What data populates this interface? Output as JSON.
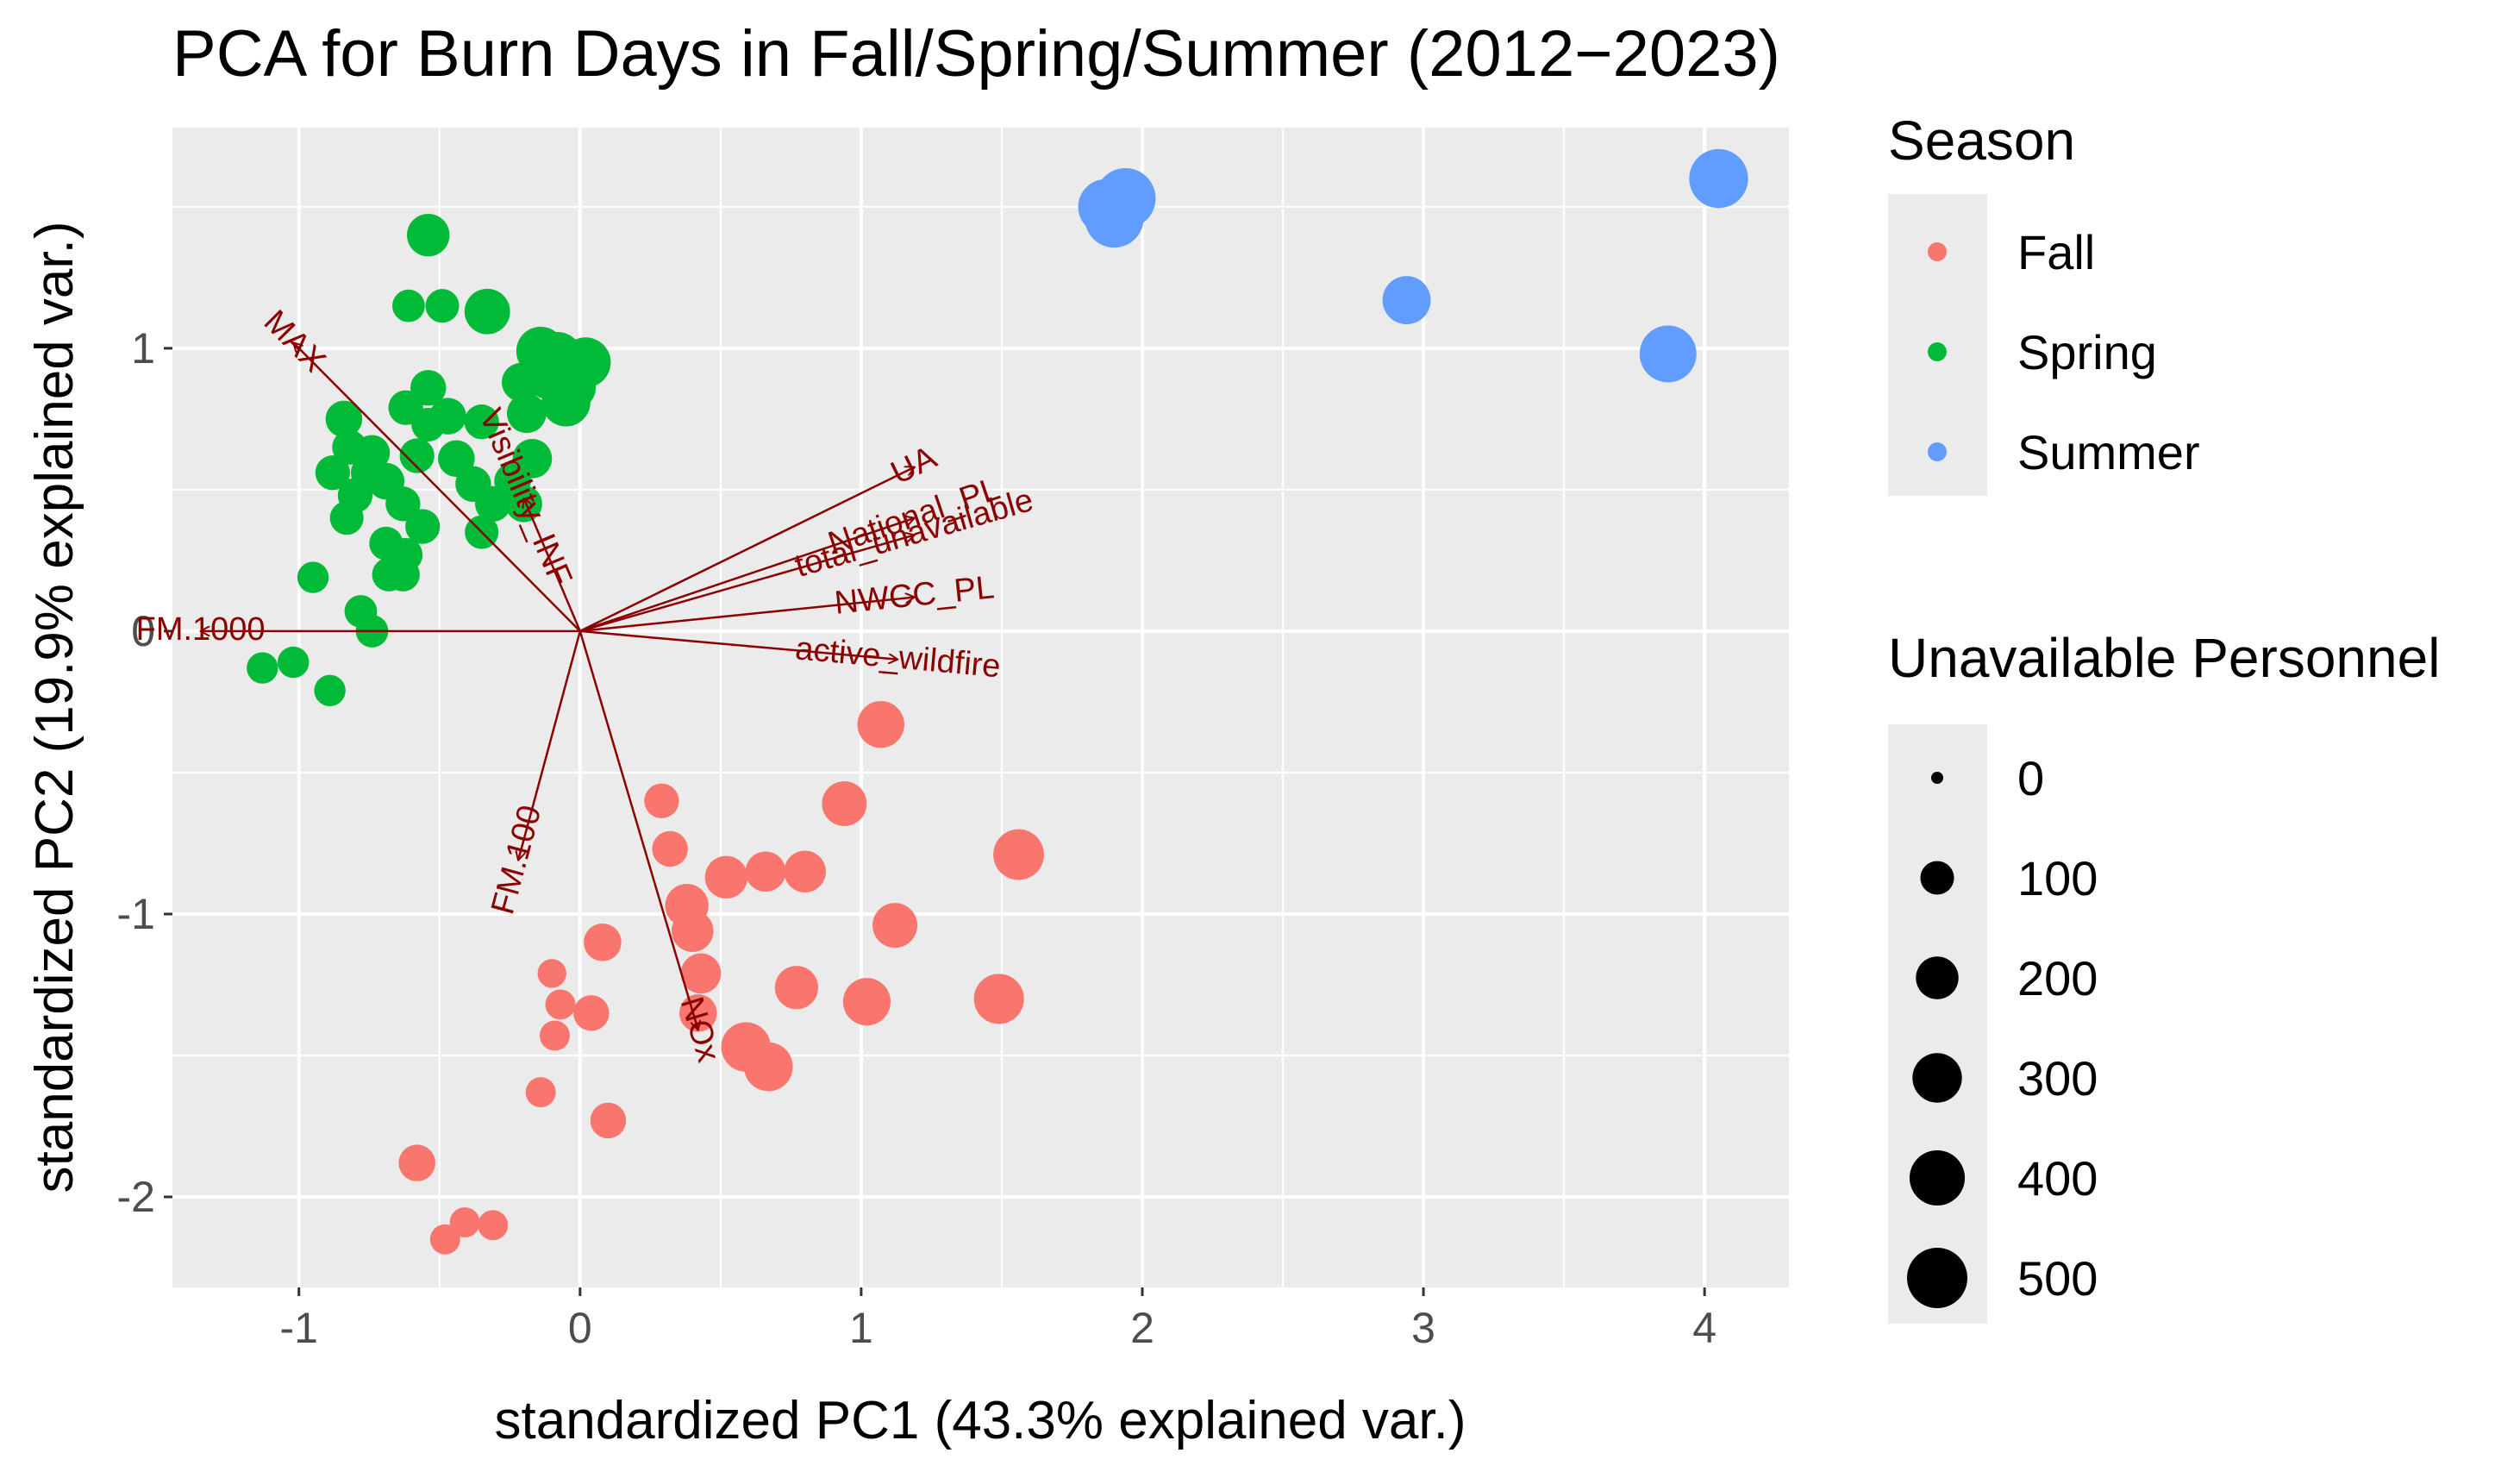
{
  "chart_data": {
    "type": "scatter",
    "title": "PCA for Burn Days in Fall/Spring/Summer (2012−2023)",
    "xlabel": "standardized PC1 (43.3% explained var.)",
    "ylabel": "standardized PC2 (19.9% explained var.)",
    "xlim": [
      -1.45,
      4.3
    ],
    "ylim": [
      -2.32,
      1.78
    ],
    "x_ticks": [
      -1,
      0,
      1,
      2,
      3,
      4
    ],
    "x_tick_labels": [
      "-1",
      "0",
      "1",
      "2",
      "3",
      "4"
    ],
    "y_ticks": [
      -2,
      -1,
      0,
      1
    ],
    "y_tick_labels": [
      "-2",
      "-1",
      "0",
      "1"
    ],
    "grid": true,
    "background": "#ebebeb",
    "legend_position": "right",
    "legend_color": {
      "title": "Season",
      "entries": [
        {
          "label": "Fall",
          "color": "#f8766d"
        },
        {
          "label": "Spring",
          "color": "#00ba38"
        },
        {
          "label": "Summer",
          "color": "#619cff"
        }
      ]
    },
    "legend_size": {
      "title": "Unavailable Personnel",
      "entries": [
        {
          "label": "0",
          "value": 0
        },
        {
          "label": "100",
          "value": 100
        },
        {
          "label": "200",
          "value": 200
        },
        {
          "label": "300",
          "value": 300
        },
        {
          "label": "400",
          "value": 400
        },
        {
          "label": "500",
          "value": 500
        }
      ]
    },
    "series": [
      {
        "name": "Fall",
        "color": "#f8766d",
        "points": [
          {
            "x": 1.07,
            "y": -0.33,
            "size": 260
          },
          {
            "x": 0.94,
            "y": -0.61,
            "size": 230
          },
          {
            "x": 1.56,
            "y": -0.79,
            "size": 320
          },
          {
            "x": 0.29,
            "y": -0.6,
            "size": 110
          },
          {
            "x": 0.32,
            "y": -0.77,
            "size": 120
          },
          {
            "x": 0.52,
            "y": -0.87,
            "size": 200
          },
          {
            "x": 0.66,
            "y": -0.85,
            "size": 170
          },
          {
            "x": 0.8,
            "y": -0.85,
            "size": 190
          },
          {
            "x": 0.38,
            "y": -0.97,
            "size": 210
          },
          {
            "x": 0.4,
            "y": -1.06,
            "size": 190
          },
          {
            "x": 1.12,
            "y": -1.04,
            "size": 230
          },
          {
            "x": 0.08,
            "y": -1.1,
            "size": 140
          },
          {
            "x": -0.1,
            "y": -1.21,
            "size": 60
          },
          {
            "x": 0.43,
            "y": -1.21,
            "size": 170
          },
          {
            "x": 0.77,
            "y": -1.26,
            "size": 210
          },
          {
            "x": 1.02,
            "y": -1.31,
            "size": 270
          },
          {
            "x": 1.49,
            "y": -1.3,
            "size": 310
          },
          {
            "x": -0.07,
            "y": -1.32,
            "size": 70
          },
          {
            "x": 0.04,
            "y": -1.35,
            "size": 120
          },
          {
            "x": 0.42,
            "y": -1.35,
            "size": 140
          },
          {
            "x": -0.09,
            "y": -1.43,
            "size": 70
          },
          {
            "x": 0.59,
            "y": -1.47,
            "size": 300
          },
          {
            "x": 0.67,
            "y": -1.54,
            "size": 290
          },
          {
            "x": -0.14,
            "y": -1.63,
            "size": 70
          },
          {
            "x": 0.1,
            "y": -1.73,
            "size": 120
          },
          {
            "x": -0.58,
            "y": -1.88,
            "size": 130
          },
          {
            "x": -0.41,
            "y": -2.09,
            "size": 70
          },
          {
            "x": -0.31,
            "y": -2.1,
            "size": 70
          },
          {
            "x": -0.48,
            "y": -2.15,
            "size": 70
          }
        ]
      },
      {
        "name": "Spring",
        "color": "#00ba38",
        "points": [
          {
            "x": -0.54,
            "y": 1.4,
            "size": 200
          },
          {
            "x": -0.61,
            "y": 1.15,
            "size": 90
          },
          {
            "x": -0.49,
            "y": 1.15,
            "size": 100
          },
          {
            "x": -0.33,
            "y": 1.13,
            "size": 240
          },
          {
            "x": -0.14,
            "y": 0.99,
            "size": 290
          },
          {
            "x": -0.08,
            "y": 0.97,
            "size": 300
          },
          {
            "x": 0.02,
            "y": 0.95,
            "size": 310
          },
          {
            "x": -0.21,
            "y": 0.88,
            "size": 150
          },
          {
            "x": -0.12,
            "y": 0.89,
            "size": 150
          },
          {
            "x": -0.02,
            "y": 0.86,
            "size": 200
          },
          {
            "x": -0.05,
            "y": 0.81,
            "size": 290
          },
          {
            "x": -0.54,
            "y": 0.86,
            "size": 120
          },
          {
            "x": -0.62,
            "y": 0.79,
            "size": 110
          },
          {
            "x": -0.47,
            "y": 0.76,
            "size": 130
          },
          {
            "x": -0.19,
            "y": 0.77,
            "size": 160
          },
          {
            "x": -0.54,
            "y": 0.73,
            "size": 100
          },
          {
            "x": -0.35,
            "y": 0.74,
            "size": 110
          },
          {
            "x": -0.84,
            "y": 0.75,
            "size": 130
          },
          {
            "x": -0.82,
            "y": 0.65,
            "size": 110
          },
          {
            "x": -0.74,
            "y": 0.63,
            "size": 120
          },
          {
            "x": -0.58,
            "y": 0.62,
            "size": 110
          },
          {
            "x": -0.44,
            "y": 0.61,
            "size": 130
          },
          {
            "x": -0.17,
            "y": 0.61,
            "size": 160
          },
          {
            "x": -0.88,
            "y": 0.56,
            "size": 110
          },
          {
            "x": -0.75,
            "y": 0.56,
            "size": 130
          },
          {
            "x": -0.69,
            "y": 0.53,
            "size": 130
          },
          {
            "x": -0.38,
            "y": 0.52,
            "size": 120
          },
          {
            "x": -0.24,
            "y": 0.53,
            "size": 130
          },
          {
            "x": -0.8,
            "y": 0.48,
            "size": 110
          },
          {
            "x": -0.63,
            "y": 0.45,
            "size": 110
          },
          {
            "x": -0.31,
            "y": 0.45,
            "size": 120
          },
          {
            "x": -0.2,
            "y": 0.45,
            "size": 130
          },
          {
            "x": -0.83,
            "y": 0.4,
            "size": 100
          },
          {
            "x": -0.56,
            "y": 0.37,
            "size": 110
          },
          {
            "x": -0.35,
            "y": 0.35,
            "size": 100
          },
          {
            "x": -0.69,
            "y": 0.31,
            "size": 100
          },
          {
            "x": -0.62,
            "y": 0.27,
            "size": 100
          },
          {
            "x": -0.68,
            "y": 0.2,
            "size": 100
          },
          {
            "x": -0.63,
            "y": 0.2,
            "size": 100
          },
          {
            "x": -0.95,
            "y": 0.19,
            "size": 80
          },
          {
            "x": -0.78,
            "y": 0.07,
            "size": 90
          },
          {
            "x": -0.74,
            "y": 0.0,
            "size": 90
          },
          {
            "x": -1.13,
            "y": -0.13,
            "size": 80
          },
          {
            "x": -1.02,
            "y": -0.11,
            "size": 80
          },
          {
            "x": -0.89,
            "y": -0.21,
            "size": 80
          }
        ]
      },
      {
        "name": "Summer",
        "color": "#619cff",
        "points": [
          {
            "x": 1.9,
            "y": 1.46,
            "size": 470
          },
          {
            "x": 1.94,
            "y": 1.53,
            "size": 500
          },
          {
            "x": 1.87,
            "y": 1.5,
            "size": 400
          },
          {
            "x": 4.05,
            "y": 1.6,
            "size": 470
          },
          {
            "x": 2.94,
            "y": 1.17,
            "size": 280
          },
          {
            "x": 3.87,
            "y": 0.98,
            "size": 430
          }
        ]
      }
    ],
    "loadings": [
      {
        "label": "MAX",
        "x": -1.02,
        "y": 1.02
      },
      {
        "label": "Visibility_INF",
        "x": -0.2,
        "y": 0.47
      },
      {
        "label": "UA",
        "x": 1.19,
        "y": 0.58
      },
      {
        "label": "National_PL",
        "x": 1.19,
        "y": 0.4
      },
      {
        "label": "total_unavailable",
        "x": 1.19,
        "y": 0.34
      },
      {
        "label": "NWCC_PL",
        "x": 1.19,
        "y": 0.12
      },
      {
        "label": "active_wildfire",
        "x": 1.13,
        "y": -0.1
      },
      {
        "label": "FM.1000",
        "x": -1.35,
        "y": 0.0
      },
      {
        "label": "FM.100",
        "x": -0.22,
        "y": -0.81
      },
      {
        "label": "NOx",
        "x": 0.42,
        "y": -1.41
      }
    ]
  }
}
